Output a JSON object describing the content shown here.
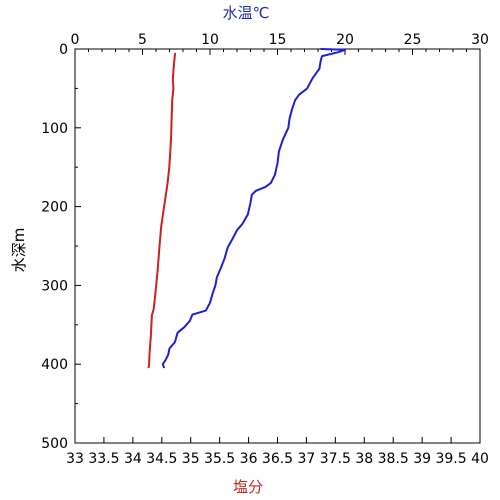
{
  "chart_data": {
    "type": "line",
    "title": "",
    "top_axis": {
      "label": "水温℃",
      "label_color": "#1f2fa6",
      "range": [
        0,
        30
      ],
      "ticks": [
        0,
        5,
        10,
        15,
        20,
        25,
        30
      ],
      "tick_labels": [
        "0",
        "5",
        "10",
        "15",
        "20",
        "25",
        "30"
      ]
    },
    "bottom_axis": {
      "label": "塩分",
      "label_color": "#c62828",
      "range": [
        33,
        40
      ],
      "ticks": [
        33,
        33.5,
        34,
        34.5,
        35,
        35.5,
        36,
        36.5,
        37,
        37.5,
        38,
        38.5,
        39,
        39.5,
        40
      ],
      "tick_labels": [
        "33",
        "33.5",
        "34",
        "34.5",
        "35",
        "35.5",
        "36",
        "36.5",
        "37",
        "37.5",
        "38",
        "38.5",
        "39",
        "39.5",
        "40"
      ]
    },
    "left_axis": {
      "label": "水深m",
      "range": [
        0,
        500
      ],
      "inverted": true,
      "ticks": [
        0,
        100,
        200,
        300,
        400,
        500
      ],
      "tick_labels": [
        "0",
        "100",
        "200",
        "300",
        "400",
        "500"
      ]
    },
    "grid": false,
    "series": [
      {
        "color": "#1f1fd0",
        "axis": "top",
        "points": [
          [
            18.2,
            0
          ],
          [
            20.0,
            1
          ],
          [
            19.5,
            4
          ],
          [
            18.3,
            9
          ],
          [
            18.2,
            15
          ],
          [
            18.1,
            25
          ],
          [
            17.6,
            37
          ],
          [
            17.2,
            50
          ],
          [
            16.6,
            58
          ],
          [
            16.3,
            65
          ],
          [
            16.1,
            75
          ],
          [
            15.9,
            88
          ],
          [
            15.8,
            100
          ],
          [
            15.4,
            115
          ],
          [
            15.1,
            130
          ],
          [
            15.0,
            145
          ],
          [
            14.8,
            160
          ],
          [
            14.5,
            170
          ],
          [
            14.1,
            175
          ],
          [
            13.4,
            180
          ],
          [
            13.1,
            185
          ],
          [
            13.0,
            195
          ],
          [
            12.8,
            210
          ],
          [
            12.4,
            222
          ],
          [
            12.0,
            230
          ],
          [
            11.7,
            240
          ],
          [
            11.3,
            252
          ],
          [
            11.1,
            265
          ],
          [
            10.8,
            278
          ],
          [
            10.5,
            290
          ],
          [
            10.4,
            300
          ],
          [
            10.2,
            310
          ],
          [
            10.0,
            322
          ],
          [
            9.7,
            332
          ],
          [
            8.7,
            337
          ],
          [
            8.5,
            345
          ],
          [
            8.1,
            353
          ],
          [
            7.6,
            360
          ],
          [
            7.4,
            372
          ],
          [
            7.0,
            380
          ],
          [
            6.9,
            388
          ],
          [
            6.7,
            395
          ],
          [
            6.5,
            400
          ],
          [
            6.6,
            405
          ]
        ]
      },
      {
        "color": "#d01f1f",
        "axis": "bottom",
        "points": [
          [
            34.73,
            5
          ],
          [
            34.71,
            20
          ],
          [
            34.69,
            38
          ],
          [
            34.7,
            50
          ],
          [
            34.68,
            65
          ],
          [
            34.67,
            90
          ],
          [
            34.66,
            115
          ],
          [
            34.63,
            150
          ],
          [
            34.6,
            170
          ],
          [
            34.56,
            190
          ],
          [
            34.53,
            205
          ],
          [
            34.49,
            225
          ],
          [
            34.46,
            250
          ],
          [
            34.43,
            280
          ],
          [
            34.39,
            310
          ],
          [
            34.36,
            330
          ],
          [
            34.33,
            338
          ],
          [
            34.31,
            365
          ],
          [
            34.29,
            385
          ],
          [
            34.28,
            400
          ],
          [
            34.27,
            405
          ]
        ]
      }
    ]
  }
}
